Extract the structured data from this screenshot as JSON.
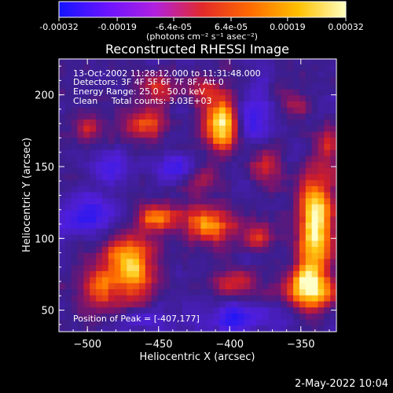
{
  "colorbar": {
    "tick_labels": [
      "-0.00032",
      "-0.00019",
      "-6.4e-05",
      "6.4e-05",
      "0.00019",
      "0.00032"
    ],
    "tick_values": [
      -0.00032,
      -0.00019,
      -6.4e-05,
      6.4e-05,
      0.00019,
      0.00032
    ],
    "range": [
      -0.00032,
      0.00032
    ],
    "units_label": "(photons cm⁻² s⁻¹ asec⁻²)",
    "colors": [
      "#1414ff",
      "#6a14ff",
      "#b020e0",
      "#e22a2a",
      "#ff6a00",
      "#ffc000",
      "#ffffc0"
    ]
  },
  "chart_data": {
    "type": "heatmap",
    "title": "Reconstructed RHESSI Image",
    "xlabel": "Heliocentric X (arcsec)",
    "ylabel": "Heliocentric Y (arcsec)",
    "xlim": [
      -520,
      -325
    ],
    "ylim": [
      35,
      225
    ],
    "xticks": [
      -500,
      -450,
      -400,
      -350
    ],
    "yticks": [
      50,
      100,
      150,
      200
    ],
    "xtick_labels": [
      "−500",
      "−450",
      "−400",
      "−350"
    ],
    "ytick_labels": [
      "50",
      "100",
      "150",
      "200"
    ],
    "annotations": [
      "13-Oct-2002 11:28:12.000 to 11:31:48.000",
      "Detectors: 3F 4F 5F 6F 7F 8F, Att 0",
      "Energy Range: 25.0 - 50.0 keV",
      "Clean     Total counts: 3.03E+03"
    ],
    "peak_label": "Position of Peak = [-407,177]",
    "peak": [
      -407,
      177
    ],
    "sources": [
      {
        "x": -405,
        "y": 180,
        "sx": 9,
        "sy": 14,
        "amp": 1.0
      },
      {
        "x": -452,
        "y": 205,
        "sx": 9,
        "sy": 9,
        "amp": 0.45
      },
      {
        "x": -462,
        "y": 180,
        "sx": 12,
        "sy": 7,
        "amp": 0.5
      },
      {
        "x": -340,
        "y": 108,
        "sx": 9,
        "sy": 26,
        "amp": 0.95
      },
      {
        "x": -345,
        "y": 65,
        "sx": 13,
        "sy": 10,
        "amp": 0.8
      },
      {
        "x": -470,
        "y": 80,
        "sx": 12,
        "sy": 18,
        "amp": 0.85
      },
      {
        "x": -495,
        "y": 65,
        "sx": 9,
        "sy": 12,
        "amp": 0.5
      },
      {
        "x": -415,
        "y": 110,
        "sx": 14,
        "sy": 9,
        "amp": 0.75
      },
      {
        "x": -450,
        "y": 115,
        "sx": 9,
        "sy": 7,
        "amp": 0.6
      },
      {
        "x": -375,
        "y": 150,
        "sx": 8,
        "sy": 9,
        "amp": 0.45
      },
      {
        "x": -395,
        "y": 68,
        "sx": 10,
        "sy": 8,
        "amp": 0.45
      },
      {
        "x": -500,
        "y": 178,
        "sx": 7,
        "sy": 7,
        "amp": 0.45
      },
      {
        "x": -420,
        "y": 205,
        "sx": 8,
        "sy": 7,
        "amp": 0.4
      },
      {
        "x": -355,
        "y": 195,
        "sx": 8,
        "sy": 8,
        "amp": 0.35
      },
      {
        "x": -420,
        "y": 140,
        "sx": 8,
        "sy": 7,
        "amp": 0.35
      },
      {
        "x": -330,
        "y": 165,
        "sx": 6,
        "sy": 12,
        "amp": 0.4
      },
      {
        "x": -380,
        "y": 100,
        "sx": 8,
        "sy": 8,
        "amp": 0.4
      }
    ],
    "dark_regions": [
      {
        "x": -385,
        "y": 185,
        "sx": 10,
        "sy": 14,
        "amp": 0.5
      },
      {
        "x": -500,
        "y": 115,
        "sx": 14,
        "sy": 10,
        "amp": 0.5
      },
      {
        "x": -485,
        "y": 150,
        "sx": 9,
        "sy": 7,
        "amp": 0.35
      },
      {
        "x": -395,
        "y": 45,
        "sx": 20,
        "sy": 7,
        "amp": 0.45
      },
      {
        "x": -440,
        "y": 150,
        "sx": 10,
        "sy": 8,
        "amp": 0.3
      },
      {
        "x": -460,
        "y": 45,
        "sx": 10,
        "sy": 6,
        "amp": 0.35
      }
    ]
  },
  "footer": {
    "timestamp": "2-May-2022 10:04"
  }
}
